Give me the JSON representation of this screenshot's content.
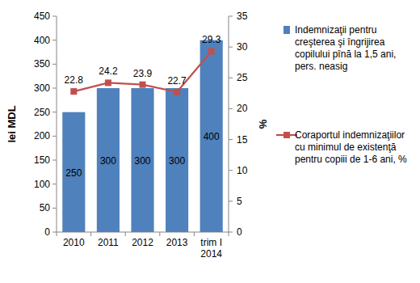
{
  "chart_data": {
    "type": "bar",
    "categories": [
      "2010",
      "2011",
      "2012",
      "2013",
      "trim I 2014"
    ],
    "series": [
      {
        "name": "Indemnizaţii pentru creşterea şi îngrijirea copilului pînă la 1,5 ani, pers. neasig",
        "type": "bar",
        "color": "#4f81bd",
        "values": [
          250,
          300,
          300,
          300,
          400
        ]
      },
      {
        "name": "Coraportul indemnizaţiilor cu minimul de existenţă pentru copiii de 1-6 ani, %",
        "type": "line",
        "color": "#c0504d",
        "marker": "square",
        "axis": "y2",
        "values": [
          22.8,
          24.2,
          23.9,
          22.7,
          29.3
        ]
      }
    ],
    "ylabel": "lei MDL",
    "y2label": "%",
    "ylim": [
      0,
      450
    ],
    "yticks": [
      0,
      50,
      100,
      150,
      200,
      250,
      300,
      350,
      400,
      450
    ],
    "y2lim": [
      0,
      35
    ],
    "y2ticks": [
      0,
      5,
      10,
      15,
      20,
      25,
      30,
      35
    ],
    "data_labels": true,
    "grid": false,
    "legend": "right"
  }
}
